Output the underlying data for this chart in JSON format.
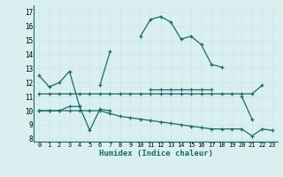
{
  "xlabel": "Humidex (Indice chaleur)",
  "x": [
    0,
    1,
    2,
    3,
    4,
    5,
    6,
    7,
    8,
    9,
    10,
    11,
    12,
    13,
    14,
    15,
    16,
    17,
    18,
    19,
    20,
    21,
    22,
    23
  ],
  "line1": [
    12.5,
    11.7,
    12.0,
    12.8,
    10.3,
    null,
    11.8,
    14.2,
    null,
    null,
    15.3,
    16.5,
    16.7,
    16.3,
    15.1,
    15.3,
    14.7,
    13.3,
    13.1,
    null,
    11.0,
    9.4,
    null,
    null
  ],
  "line2": [
    11.2,
    11.2,
    11.2,
    11.2,
    11.2,
    11.2,
    11.2,
    11.2,
    11.2,
    11.2,
    11.2,
    11.2,
    11.2,
    11.2,
    11.2,
    11.2,
    11.2,
    11.2,
    11.2,
    11.2,
    11.2,
    11.2,
    11.8,
    null
  ],
  "line3": [
    10.0,
    10.0,
    10.0,
    10.3,
    10.3,
    8.6,
    10.1,
    10.0,
    null,
    null,
    null,
    11.5,
    11.5,
    11.5,
    11.5,
    11.5,
    11.5,
    11.5,
    null,
    null,
    null,
    null,
    null,
    null
  ],
  "line4": [
    10.0,
    10.0,
    10.0,
    10.0,
    10.0,
    10.0,
    10.0,
    9.8,
    9.6,
    9.5,
    9.4,
    9.3,
    9.2,
    9.1,
    9.0,
    8.9,
    8.8,
    8.7,
    8.7,
    8.7,
    8.7,
    8.2,
    8.7,
    8.6
  ],
  "bg_color": "#d9eff0",
  "grid_color": "#c8e8ea",
  "line_color": "#1a6b6b",
  "ylim": [
    7.8,
    17.5
  ],
  "yticks": [
    8,
    9,
    10,
    11,
    12,
    13,
    14,
    15,
    16,
    17
  ],
  "xticks": [
    0,
    1,
    2,
    3,
    4,
    5,
    6,
    7,
    8,
    9,
    10,
    11,
    12,
    13,
    14,
    15,
    16,
    17,
    18,
    19,
    20,
    21,
    22,
    23
  ]
}
